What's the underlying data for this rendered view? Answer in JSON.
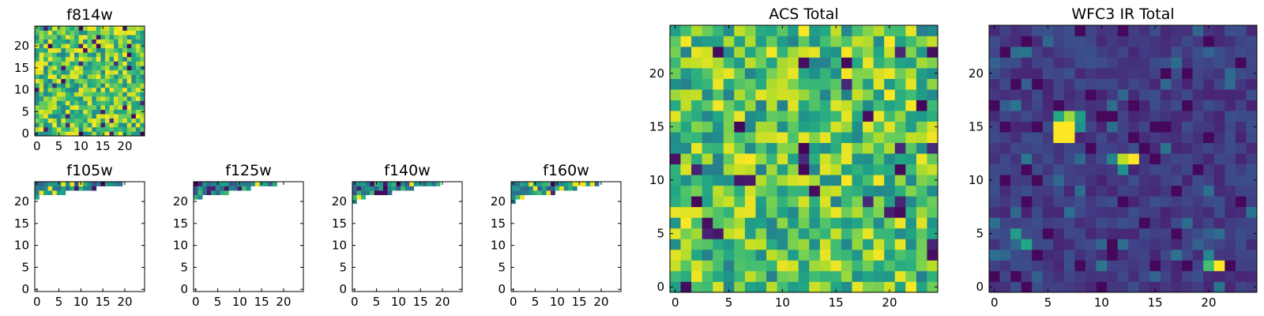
{
  "chart_data": [
    {
      "type": "heatmap",
      "title": "f814w",
      "grid_size": 25,
      "colormap": "viridis",
      "xticks": [
        0,
        5,
        10,
        15,
        20
      ],
      "yticks": [
        0,
        5,
        10,
        15,
        20
      ],
      "xlim": [
        -0.5,
        24.5
      ],
      "ylim": [
        -0.5,
        24.5
      ],
      "value_range": [
        0,
        1
      ],
      "fill": "dense",
      "seed": 11,
      "bias": 0.72
    },
    {
      "type": "heatmap",
      "title": "f105w",
      "grid_size": 25,
      "colormap": "viridis",
      "xticks": [
        0,
        5,
        10,
        15,
        20
      ],
      "yticks": [
        0,
        5,
        10,
        15,
        20
      ],
      "xlim": [
        -0.5,
        24.5
      ],
      "ylim": [
        -0.5,
        24.5
      ],
      "value_range": [
        0,
        1
      ],
      "fill": "top-strip",
      "seed": 21,
      "strip_edge_cols": [
        1,
        2,
        2,
        2,
        2,
        3,
        3,
        3,
        3,
        3,
        3,
        3,
        3,
        3,
        3,
        3,
        3,
        3,
        3,
        3,
        3,
        3,
        3,
        3,
        3
      ],
      "strip_rows_by_col": [
        4,
        3,
        3,
        3,
        3,
        3,
        3,
        2,
        2,
        2,
        2,
        2,
        2,
        2,
        1,
        1,
        1,
        1,
        1,
        1,
        0,
        0,
        0,
        0,
        0
      ]
    },
    {
      "type": "heatmap",
      "title": "f125w",
      "grid_size": 25,
      "colormap": "viridis",
      "xticks": [
        0,
        5,
        10,
        15,
        20
      ],
      "yticks": [
        0,
        5,
        10,
        15,
        20
      ],
      "xlim": [
        -0.5,
        24.5
      ],
      "ylim": [
        -0.5,
        24.5
      ],
      "value_range": [
        0,
        1
      ],
      "fill": "top-strip",
      "seed": 31,
      "strip_rows_by_col": [
        4,
        4,
        3,
        3,
        3,
        3,
        3,
        3,
        2,
        2,
        2,
        2,
        2,
        1,
        1,
        1,
        1,
        1,
        1,
        0,
        0,
        0,
        0,
        0,
        0
      ]
    },
    {
      "type": "heatmap",
      "title": "f140w",
      "grid_size": 25,
      "colormap": "viridis",
      "xticks": [
        0,
        5,
        10,
        15,
        20
      ],
      "yticks": [
        0,
        5,
        10,
        15,
        20
      ],
      "xlim": [
        -0.5,
        24.5
      ],
      "ylim": [
        -0.5,
        24.5
      ],
      "value_range": [
        0,
        1
      ],
      "fill": "top-strip",
      "seed": 41,
      "strip_rows_by_col": [
        5,
        4,
        4,
        3,
        3,
        3,
        3,
        3,
        3,
        2,
        2,
        2,
        2,
        2,
        1,
        1,
        1,
        1,
        1,
        1,
        0,
        0,
        0,
        0,
        0
      ]
    },
    {
      "type": "heatmap",
      "title": "f160w",
      "grid_size": 25,
      "colormap": "viridis",
      "xticks": [
        0,
        5,
        10,
        15,
        20
      ],
      "yticks": [
        0,
        5,
        10,
        15,
        20
      ],
      "xlim": [
        -0.5,
        24.5
      ],
      "ylim": [
        -0.5,
        24.5
      ],
      "value_range": [
        0,
        1
      ],
      "fill": "top-strip",
      "seed": 51,
      "strip_rows_by_col": [
        5,
        4,
        4,
        3,
        3,
        3,
        3,
        3,
        3,
        3,
        2,
        2,
        2,
        2,
        2,
        1,
        1,
        1,
        1,
        1,
        0,
        0,
        0,
        0,
        0
      ]
    },
    {
      "type": "heatmap",
      "title": "ACS Total",
      "grid_size": 25,
      "colormap": "viridis",
      "xticks": [
        0,
        5,
        10,
        15,
        20
      ],
      "yticks": [
        0,
        5,
        10,
        15,
        20
      ],
      "xlim": [
        -0.5,
        24.5
      ],
      "ylim": [
        -0.5,
        24.5
      ],
      "value_range": [
        0,
        1
      ],
      "fill": "dense",
      "seed": 61,
      "bias": 0.7
    },
    {
      "type": "heatmap",
      "title": "WFC3 IR Total",
      "grid_size": 25,
      "colormap": "viridis",
      "xticks": [
        0,
        5,
        10,
        15,
        20
      ],
      "yticks": [
        0,
        5,
        10,
        15,
        20
      ],
      "xlim": [
        -0.5,
        24.5
      ],
      "ylim": [
        -0.5,
        24.5
      ],
      "value_range": [
        0,
        1
      ],
      "fill": "dark-with-sources",
      "seed": 71,
      "bias": 0.1,
      "sources": [
        {
          "x": 6,
          "y": 15,
          "value": 1.0
        },
        {
          "x": 7,
          "y": 15,
          "value": 1.0
        },
        {
          "x": 6,
          "y": 14,
          "value": 1.0
        },
        {
          "x": 7,
          "y": 14,
          "value": 1.0
        },
        {
          "x": 7,
          "y": 16,
          "value": 0.85
        },
        {
          "x": 8,
          "y": 16,
          "value": 0.55
        },
        {
          "x": 6,
          "y": 16,
          "value": 0.6
        },
        {
          "x": 8,
          "y": 15,
          "value": 0.5
        },
        {
          "x": 12,
          "y": 12,
          "value": 0.9
        },
        {
          "x": 13,
          "y": 12,
          "value": 1.0
        },
        {
          "x": 12,
          "y": 11,
          "value": 0.5
        },
        {
          "x": 11,
          "y": 12,
          "value": 0.45
        },
        {
          "x": 2,
          "y": 5,
          "value": 0.55
        },
        {
          "x": 3,
          "y": 4,
          "value": 0.6
        },
        {
          "x": 2,
          "y": 4,
          "value": 0.35
        },
        {
          "x": 21,
          "y": 2,
          "value": 1.0
        },
        {
          "x": 20,
          "y": 2,
          "value": 0.7
        },
        {
          "x": 20,
          "y": 3,
          "value": 0.45
        }
      ]
    }
  ]
}
